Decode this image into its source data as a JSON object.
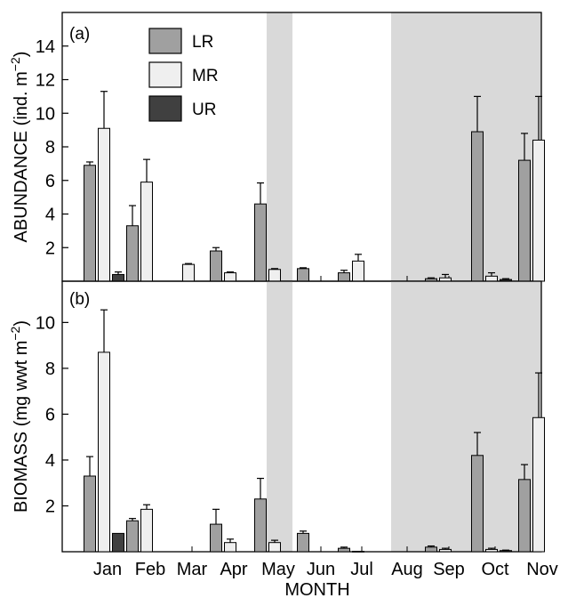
{
  "chart_data": [
    {
      "type": "bar",
      "panel_label": "(a)",
      "ylabel_main": "ABUNDANCE (ind. m",
      "ylabel_exp": "−2",
      "ylabel_close": ")",
      "ylim": [
        0,
        16
      ],
      "yticks": [
        "2",
        "4",
        "6",
        "8",
        "10",
        "12",
        "14"
      ],
      "categories": [
        "Jan",
        "Feb",
        "Mar",
        "Apr",
        "May",
        "Jun",
        "Jul",
        "Aug",
        "Sep",
        "Oct",
        "Nov"
      ],
      "shaded_months": [
        "May",
        "Aug",
        "Sep",
        "Oct",
        "Nov"
      ],
      "legend_position": "top-left",
      "series": [
        {
          "name": "LR",
          "color": "#a0a0a0",
          "values": [
            6.9,
            3.3,
            null,
            1.8,
            4.6,
            0.75,
            0.5,
            null,
            0.15,
            8.9,
            7.2
          ],
          "errors": [
            0.2,
            1.2,
            null,
            0.2,
            1.25,
            0.05,
            0.15,
            null,
            0.05,
            2.1,
            1.6
          ]
        },
        {
          "name": "MR",
          "color": "#efefef",
          "values": [
            9.1,
            5.9,
            1.0,
            0.5,
            0.7,
            null,
            1.2,
            null,
            0.2,
            0.3,
            8.4
          ],
          "errors": [
            2.2,
            1.35,
            0.05,
            0.05,
            0.05,
            null,
            0.4,
            null,
            0.2,
            0.2,
            2.6
          ]
        },
        {
          "name": "UR",
          "color": "#404040",
          "values": [
            0.4,
            null,
            null,
            null,
            null,
            null,
            null,
            null,
            null,
            0.1,
            null
          ],
          "errors": [
            0.15,
            null,
            null,
            null,
            null,
            null,
            null,
            null,
            null,
            0.05,
            null
          ]
        }
      ]
    },
    {
      "type": "bar",
      "panel_label": "(b)",
      "ylabel_main": "BIOMASS (mg wwt m",
      "ylabel_exp": "−2",
      "ylabel_close": ")",
      "ylim": [
        0,
        11.8
      ],
      "yticks": [
        "2",
        "4",
        "6",
        "8",
        "10"
      ],
      "categories": [
        "Jan",
        "Feb",
        "Mar",
        "Apr",
        "May",
        "Jun",
        "Jul",
        "Aug",
        "Sep",
        "Oct",
        "Nov"
      ],
      "shaded_months": [
        "May",
        "Aug",
        "Sep",
        "Oct",
        "Nov"
      ],
      "xlabel": "MONTH",
      "series": [
        {
          "name": "LR",
          "color": "#a0a0a0",
          "values": [
            3.3,
            1.35,
            null,
            1.2,
            2.3,
            0.8,
            0.15,
            null,
            0.2,
            4.2,
            3.15
          ],
          "errors": [
            0.85,
            0.1,
            null,
            0.65,
            0.9,
            0.1,
            0.05,
            null,
            0.05,
            1.0,
            0.65
          ]
        },
        {
          "name": "MR",
          "color": "#efefef",
          "values": [
            8.7,
            1.85,
            null,
            0.4,
            0.4,
            null,
            0.02,
            null,
            0.1,
            0.1,
            5.85
          ],
          "errors": [
            1.85,
            0.2,
            null,
            0.15,
            0.1,
            null,
            0.0,
            null,
            0.05,
            0.05,
            1.95
          ]
        },
        {
          "name": "UR",
          "color": "#404040",
          "values": [
            0.8,
            null,
            null,
            null,
            null,
            null,
            null,
            null,
            null,
            0.05,
            null
          ],
          "errors": [
            0.0,
            null,
            null,
            null,
            null,
            null,
            null,
            null,
            null,
            0.02,
            null
          ]
        }
      ]
    }
  ]
}
